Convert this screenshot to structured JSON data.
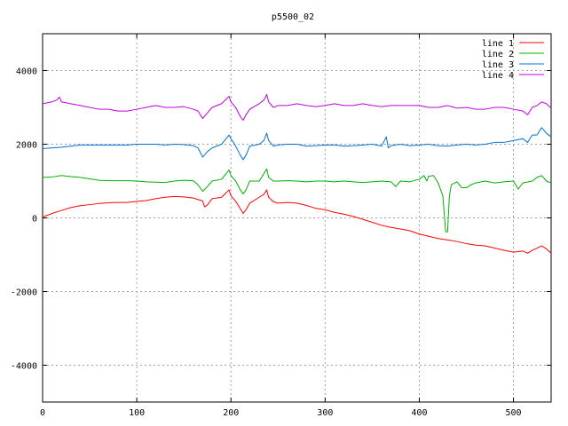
{
  "chart_data": {
    "type": "line",
    "title": "p5500_02",
    "xlim": [
      0,
      540
    ],
    "ylim": [
      -5000,
      5000
    ],
    "x_ticks": [
      0,
      100,
      200,
      300,
      400,
      500
    ],
    "y_ticks": [
      -4000,
      -2000,
      0,
      2000,
      4000
    ],
    "grid": true,
    "legend_position": "top-right",
    "series": [
      {
        "name": "line 1",
        "color": "#ff0000",
        "points": [
          [
            0,
            20
          ],
          [
            10,
            120
          ],
          [
            20,
            200
          ],
          [
            30,
            280
          ],
          [
            40,
            330
          ],
          [
            50,
            360
          ],
          [
            60,
            390
          ],
          [
            70,
            410
          ],
          [
            80,
            420
          ],
          [
            90,
            420
          ],
          [
            100,
            450
          ],
          [
            110,
            470
          ],
          [
            120,
            520
          ],
          [
            130,
            560
          ],
          [
            140,
            580
          ],
          [
            150,
            570
          ],
          [
            160,
            540
          ],
          [
            170,
            460
          ],
          [
            172,
            300
          ],
          [
            175,
            350
          ],
          [
            180,
            520
          ],
          [
            190,
            560
          ],
          [
            198,
            760
          ],
          [
            200,
            600
          ],
          [
            205,
            450
          ],
          [
            210,
            250
          ],
          [
            213,
            120
          ],
          [
            216,
            220
          ],
          [
            220,
            400
          ],
          [
            230,
            560
          ],
          [
            235,
            640
          ],
          [
            238,
            760
          ],
          [
            240,
            560
          ],
          [
            245,
            440
          ],
          [
            250,
            400
          ],
          [
            260,
            420
          ],
          [
            270,
            400
          ],
          [
            280,
            340
          ],
          [
            290,
            260
          ],
          [
            300,
            220
          ],
          [
            310,
            150
          ],
          [
            320,
            100
          ],
          [
            330,
            40
          ],
          [
            340,
            -40
          ],
          [
            350,
            -120
          ],
          [
            360,
            -200
          ],
          [
            370,
            -260
          ],
          [
            380,
            -300
          ],
          [
            390,
            -350
          ],
          [
            400,
            -440
          ],
          [
            410,
            -500
          ],
          [
            420,
            -560
          ],
          [
            430,
            -600
          ],
          [
            440,
            -640
          ],
          [
            450,
            -700
          ],
          [
            460,
            -740
          ],
          [
            470,
            -760
          ],
          [
            480,
            -820
          ],
          [
            490,
            -880
          ],
          [
            500,
            -930
          ],
          [
            510,
            -900
          ],
          [
            515,
            -960
          ],
          [
            520,
            -880
          ],
          [
            525,
            -820
          ],
          [
            530,
            -760
          ],
          [
            535,
            -840
          ],
          [
            540,
            -960
          ]
        ]
      },
      {
        "name": "line 2",
        "color": "#00b000",
        "points": [
          [
            0,
            1100
          ],
          [
            10,
            1110
          ],
          [
            20,
            1150
          ],
          [
            30,
            1120
          ],
          [
            40,
            1100
          ],
          [
            50,
            1060
          ],
          [
            60,
            1020
          ],
          [
            70,
            1010
          ],
          [
            80,
            1010
          ],
          [
            90,
            1010
          ],
          [
            100,
            1000
          ],
          [
            110,
            980
          ],
          [
            120,
            970
          ],
          [
            130,
            960
          ],
          [
            140,
            1000
          ],
          [
            150,
            1020
          ],
          [
            160,
            1010
          ],
          [
            165,
            900
          ],
          [
            170,
            720
          ],
          [
            175,
            850
          ],
          [
            180,
            1000
          ],
          [
            190,
            1050
          ],
          [
            198,
            1300
          ],
          [
            200,
            1150
          ],
          [
            205,
            1000
          ],
          [
            210,
            760
          ],
          [
            213,
            650
          ],
          [
            216,
            760
          ],
          [
            220,
            1000
          ],
          [
            230,
            1000
          ],
          [
            235,
            1200
          ],
          [
            238,
            1330
          ],
          [
            240,
            1100
          ],
          [
            245,
            1000
          ],
          [
            250,
            1000
          ],
          [
            260,
            1010
          ],
          [
            270,
            1000
          ],
          [
            280,
            980
          ],
          [
            290,
            1000
          ],
          [
            300,
            1000
          ],
          [
            310,
            980
          ],
          [
            320,
            1000
          ],
          [
            330,
            980
          ],
          [
            340,
            960
          ],
          [
            350,
            980
          ],
          [
            360,
            1000
          ],
          [
            370,
            980
          ],
          [
            375,
            850
          ],
          [
            380,
            1000
          ],
          [
            390,
            980
          ],
          [
            400,
            1050
          ],
          [
            405,
            1150
          ],
          [
            408,
            1000
          ],
          [
            410,
            1130
          ],
          [
            415,
            1150
          ],
          [
            420,
            950
          ],
          [
            425,
            600
          ],
          [
            428,
            -380
          ],
          [
            430,
            -380
          ],
          [
            432,
            600
          ],
          [
            434,
            900
          ],
          [
            440,
            980
          ],
          [
            445,
            820
          ],
          [
            450,
            820
          ],
          [
            455,
            900
          ],
          [
            460,
            950
          ],
          [
            470,
            1000
          ],
          [
            480,
            950
          ],
          [
            490,
            980
          ],
          [
            500,
            1000
          ],
          [
            505,
            780
          ],
          [
            510,
            950
          ],
          [
            520,
            1000
          ],
          [
            525,
            1100
          ],
          [
            530,
            1150
          ],
          [
            535,
            1000
          ],
          [
            540,
            950
          ]
        ]
      },
      {
        "name": "line 3",
        "color": "#0070d0",
        "points": [
          [
            0,
            1880
          ],
          [
            10,
            1900
          ],
          [
            20,
            1920
          ],
          [
            30,
            1950
          ],
          [
            40,
            1980
          ],
          [
            50,
            1980
          ],
          [
            60,
            1980
          ],
          [
            70,
            1980
          ],
          [
            80,
            1980
          ],
          [
            90,
            1980
          ],
          [
            100,
            2000
          ],
          [
            110,
            2000
          ],
          [
            120,
            2000
          ],
          [
            130,
            1980
          ],
          [
            140,
            2000
          ],
          [
            150,
            1990
          ],
          [
            160,
            1960
          ],
          [
            165,
            1900
          ],
          [
            170,
            1650
          ],
          [
            175,
            1800
          ],
          [
            180,
            1900
          ],
          [
            190,
            2000
          ],
          [
            198,
            2250
          ],
          [
            200,
            2150
          ],
          [
            205,
            1950
          ],
          [
            210,
            1700
          ],
          [
            213,
            1580
          ],
          [
            216,
            1700
          ],
          [
            220,
            1950
          ],
          [
            230,
            2000
          ],
          [
            235,
            2100
          ],
          [
            238,
            2300
          ],
          [
            240,
            2100
          ],
          [
            245,
            1950
          ],
          [
            250,
            1980
          ],
          [
            260,
            2000
          ],
          [
            270,
            2000
          ],
          [
            280,
            1950
          ],
          [
            290,
            1960
          ],
          [
            300,
            1980
          ],
          [
            310,
            1980
          ],
          [
            320,
            1950
          ],
          [
            330,
            1960
          ],
          [
            340,
            1980
          ],
          [
            350,
            2000
          ],
          [
            360,
            1950
          ],
          [
            365,
            2200
          ],
          [
            367,
            1900
          ],
          [
            370,
            1960
          ],
          [
            380,
            2000
          ],
          [
            390,
            1960
          ],
          [
            400,
            1980
          ],
          [
            410,
            2000
          ],
          [
            420,
            1960
          ],
          [
            430,
            1950
          ],
          [
            440,
            1980
          ],
          [
            450,
            2000
          ],
          [
            460,
            1980
          ],
          [
            470,
            2000
          ],
          [
            480,
            2050
          ],
          [
            490,
            2050
          ],
          [
            500,
            2100
          ],
          [
            510,
            2150
          ],
          [
            515,
            2050
          ],
          [
            520,
            2250
          ],
          [
            525,
            2250
          ],
          [
            530,
            2450
          ],
          [
            535,
            2300
          ],
          [
            540,
            2200
          ]
        ]
      },
      {
        "name": "line 4",
        "color": "#c000e0",
        "points": [
          [
            0,
            3100
          ],
          [
            10,
            3150
          ],
          [
            15,
            3200
          ],
          [
            18,
            3280
          ],
          [
            20,
            3150
          ],
          [
            30,
            3100
          ],
          [
            40,
            3050
          ],
          [
            50,
            3000
          ],
          [
            60,
            2950
          ],
          [
            70,
            2950
          ],
          [
            80,
            2900
          ],
          [
            90,
            2900
          ],
          [
            100,
            2950
          ],
          [
            110,
            3000
          ],
          [
            120,
            3050
          ],
          [
            130,
            3000
          ],
          [
            140,
            3000
          ],
          [
            150,
            3020
          ],
          [
            160,
            2950
          ],
          [
            165,
            2900
          ],
          [
            170,
            2700
          ],
          [
            175,
            2850
          ],
          [
            180,
            3000
          ],
          [
            190,
            3100
          ],
          [
            198,
            3300
          ],
          [
            200,
            3150
          ],
          [
            205,
            3000
          ],
          [
            210,
            2750
          ],
          [
            213,
            2650
          ],
          [
            216,
            2800
          ],
          [
            220,
            2950
          ],
          [
            230,
            3100
          ],
          [
            235,
            3200
          ],
          [
            238,
            3350
          ],
          [
            240,
            3150
          ],
          [
            245,
            3000
          ],
          [
            250,
            3050
          ],
          [
            260,
            3050
          ],
          [
            270,
            3100
          ],
          [
            280,
            3050
          ],
          [
            290,
            3020
          ],
          [
            300,
            3050
          ],
          [
            310,
            3100
          ],
          [
            320,
            3050
          ],
          [
            330,
            3050
          ],
          [
            340,
            3100
          ],
          [
            350,
            3050
          ],
          [
            360,
            3020
          ],
          [
            370,
            3050
          ],
          [
            380,
            3050
          ],
          [
            390,
            3050
          ],
          [
            400,
            3050
          ],
          [
            410,
            3000
          ],
          [
            420,
            3000
          ],
          [
            430,
            3050
          ],
          [
            440,
            2980
          ],
          [
            450,
            3000
          ],
          [
            460,
            2950
          ],
          [
            470,
            2950
          ],
          [
            480,
            3000
          ],
          [
            490,
            3000
          ],
          [
            500,
            2950
          ],
          [
            510,
            2900
          ],
          [
            515,
            2800
          ],
          [
            520,
            3000
          ],
          [
            525,
            3050
          ],
          [
            530,
            3150
          ],
          [
            535,
            3100
          ],
          [
            540,
            2980
          ]
        ]
      }
    ]
  }
}
